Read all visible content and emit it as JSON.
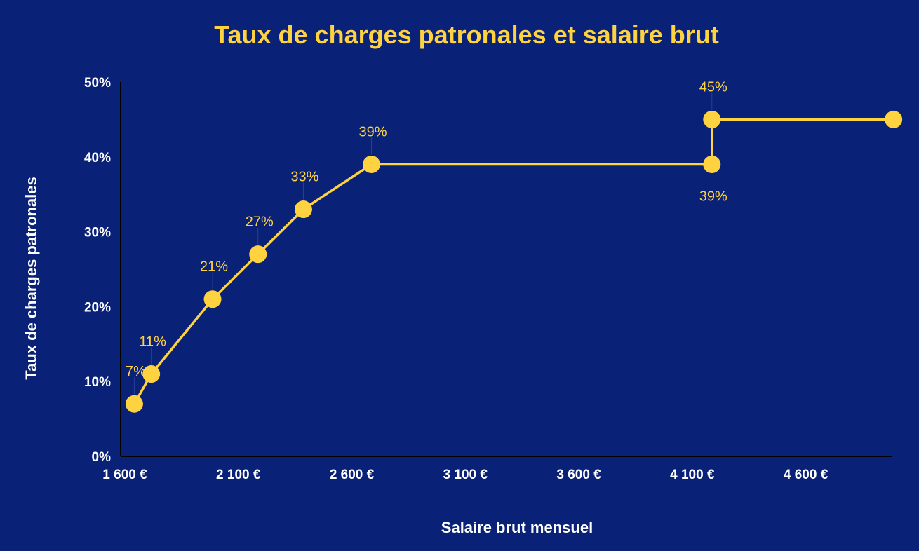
{
  "chart_data": {
    "type": "line",
    "title": "Taux de charges patronales et salaire brut",
    "xlabel": "Salaire brut mensuel",
    "ylabel": "Taux de charges patronales",
    "xlim": [
      1600,
      5000
    ],
    "ylim": [
      0,
      50
    ],
    "x_ticks": [
      1600,
      2100,
      2600,
      3100,
      3600,
      4100,
      4600
    ],
    "x_tick_labels": [
      "1 600 €",
      "2 100 €",
      "2 600 €",
      "3 100 €",
      "3 600 €",
      "4 100 €",
      "4 600 €"
    ],
    "y_ticks": [
      0,
      10,
      20,
      30,
      40,
      50
    ],
    "y_tick_labels": [
      "0%",
      "10%",
      "20%",
      "30%",
      "40%",
      "50%"
    ],
    "grid": false,
    "legend": "none",
    "series": [
      {
        "points": [
          {
            "x": 1660,
            "y": 7,
            "label": "7%",
            "pos": "above"
          },
          {
            "x": 1735,
            "y": 11,
            "label": "11%",
            "pos": "above"
          },
          {
            "x": 2005,
            "y": 21,
            "label": "21%",
            "pos": "above"
          },
          {
            "x": 2205,
            "y": 27,
            "label": "27%",
            "pos": "above"
          },
          {
            "x": 2405,
            "y": 33,
            "label": "33%",
            "pos": "above"
          },
          {
            "x": 2705,
            "y": 39,
            "label": "39%",
            "pos": "above"
          },
          {
            "x": 4205,
            "y": 39,
            "label": "39%",
            "pos": "below"
          },
          {
            "x": 4205,
            "y": 45,
            "label": "45%",
            "pos": "above"
          },
          {
            "x": 5005,
            "y": 45,
            "label": "",
            "pos": "none"
          }
        ]
      }
    ],
    "colors": {
      "background": "#0a2178",
      "series": "#ffd23f",
      "title": "#ffd23f",
      "text": "#ffffff",
      "axis": "#000000"
    }
  }
}
